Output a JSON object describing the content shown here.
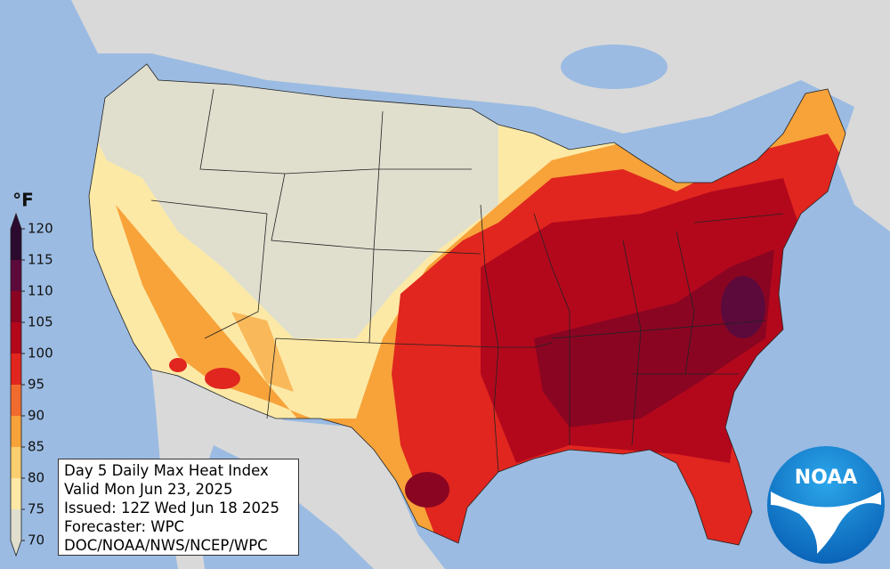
{
  "legend": {
    "unit": "°F",
    "ticks": [
      120,
      115,
      110,
      105,
      100,
      95,
      90,
      85,
      80,
      75,
      70
    ],
    "colors": [
      "#2b0a2e",
      "#5c0a3c",
      "#8a0522",
      "#b3081c",
      "#e0261f",
      "#f26b2e",
      "#f7a33a",
      "#fbcf6f",
      "#fde9a6",
      "#e0dfce"
    ]
  },
  "info": {
    "lines": [
      "Day 5 Daily Max Heat Index",
      "Valid Mon Jun 23, 2025",
      "Issued: 12Z Wed Jun 18 2025",
      "Forecaster: WPC",
      "DOC/NOAA/NWS/NCEP/WPC"
    ]
  },
  "logo": {
    "text": "NOAA"
  }
}
